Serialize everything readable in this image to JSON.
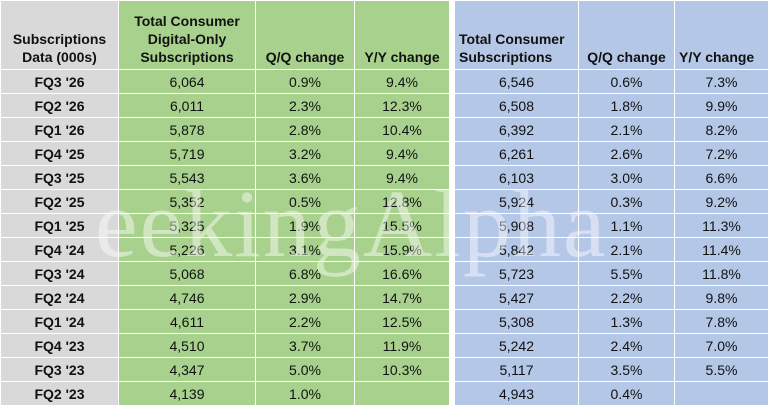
{
  "header": {
    "row_label": "Subscriptions Data (000s)",
    "digital": "Total Consumer Digital-Only Subscriptions",
    "digital_qq": "Q/Q change",
    "digital_yy": "Y/Y change",
    "consumer": "Total Consumer Subscriptions",
    "consumer_qq": "Q/Q change",
    "consumer_yy": "Y/Y change"
  },
  "rows": [
    {
      "q": "FQ3 '26",
      "dig": "6,064",
      "dqq": "0.9%",
      "dyy": "9.4%",
      "tot": "6,546",
      "tqq": "0.6%",
      "tyy": "7.3%"
    },
    {
      "q": "FQ2 '26",
      "dig": "6,011",
      "dqq": "2.3%",
      "dyy": "12.3%",
      "tot": "6,508",
      "tqq": "1.8%",
      "tyy": "9.9%"
    },
    {
      "q": "FQ1 '26",
      "dig": "5,878",
      "dqq": "2.8%",
      "dyy": "10.4%",
      "tot": "6,392",
      "tqq": "2.1%",
      "tyy": "8.2%"
    },
    {
      "q": "FQ4 '25",
      "dig": "5,719",
      "dqq": "3.2%",
      "dyy": "9.4%",
      "tot": "6,261",
      "tqq": "2.6%",
      "tyy": "7.2%"
    },
    {
      "q": "FQ3 '25",
      "dig": "5,543",
      "dqq": "3.6%",
      "dyy": "9.4%",
      "tot": "6,103",
      "tqq": "3.0%",
      "tyy": "6.6%"
    },
    {
      "q": "FQ2 '25",
      "dig": "5,352",
      "dqq": "0.5%",
      "dyy": "12.8%",
      "tot": "5,924",
      "tqq": "0.3%",
      "tyy": "9.2%"
    },
    {
      "q": "FQ1 '25",
      "dig": "5,325",
      "dqq": "1.9%",
      "dyy": "15.5%",
      "tot": "5,908",
      "tqq": "1.1%",
      "tyy": "11.3%"
    },
    {
      "q": "FQ4 '24",
      "dig": "5,226",
      "dqq": "3.1%",
      "dyy": "15.9%",
      "tot": "5,842",
      "tqq": "2.1%",
      "tyy": "11.4%"
    },
    {
      "q": "FQ3 '24",
      "dig": "5,068",
      "dqq": "6.8%",
      "dyy": "16.6%",
      "tot": "5,723",
      "tqq": "5.5%",
      "tyy": "11.8%"
    },
    {
      "q": "FQ2 '24",
      "dig": "4,746",
      "dqq": "2.9%",
      "dyy": "14.7%",
      "tot": "5,427",
      "tqq": "2.2%",
      "tyy": "9.8%"
    },
    {
      "q": "FQ1 '24",
      "dig": "4,611",
      "dqq": "2.2%",
      "dyy": "12.5%",
      "tot": "5,308",
      "tqq": "1.3%",
      "tyy": "7.8%"
    },
    {
      "q": "FQ4 '23",
      "dig": "4,510",
      "dqq": "3.7%",
      "dyy": "11.9%",
      "tot": "5,242",
      "tqq": "2.4%",
      "tyy": "7.0%"
    },
    {
      "q": "FQ3 '23",
      "dig": "4,347",
      "dqq": "5.0%",
      "dyy": "10.3%",
      "tot": "5,117",
      "tqq": "3.5%",
      "tyy": "5.5%"
    },
    {
      "q": "FQ2 '23",
      "dig": "4,139",
      "dqq": "1.0%",
      "dyy": "",
      "tot": "4,943",
      "tqq": "0.4%",
      "tyy": ""
    }
  ],
  "colors": {
    "label_bg": "#d9d9d9",
    "digital_bg": "#a9d18e",
    "consumer_bg": "#b4c7e7"
  }
}
